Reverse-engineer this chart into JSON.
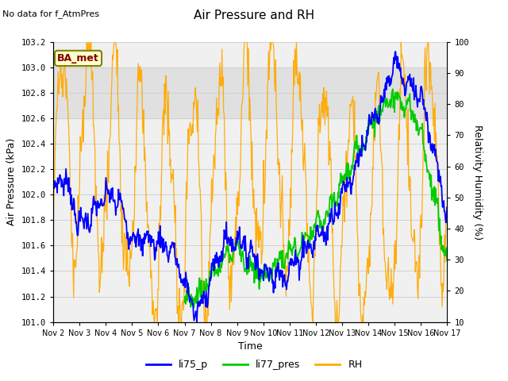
{
  "title": "Air Pressure and RH",
  "no_data_text": "No data for f_AtmPres",
  "station_label": "BA_met",
  "xlabel": "Time",
  "ylabel_left": "Air Pressure (kPa)",
  "ylabel_right": "Relativity Humidity (%)",
  "ylim_left": [
    101.0,
    103.2
  ],
  "ylim_right": [
    10,
    100
  ],
  "yticks_left": [
    101.0,
    101.2,
    101.4,
    101.6,
    101.8,
    102.0,
    102.2,
    102.4,
    102.6,
    102.8,
    103.0,
    103.2
  ],
  "yticks_right": [
    10,
    20,
    30,
    40,
    50,
    60,
    70,
    80,
    90,
    100
  ],
  "xtick_labels": [
    "Nov 2",
    "Nov 3",
    "Nov 4",
    "Nov 5",
    "Nov 6",
    "Nov 7",
    "Nov 8",
    "Nov 9",
    "Nov 10",
    "Nov 11",
    "Nov 12",
    "Nov 13",
    "Nov 14",
    "Nov 15",
    "Nov 16",
    "Nov 17"
  ],
  "color_li75": "#0000ff",
  "color_li77": "#00cc00",
  "color_rh": "#ffaa00",
  "color_station_box_text": "#800000",
  "color_station_border": "#808000",
  "color_station_bg": "#ffffcc",
  "grid_color": "#d0d0d0",
  "plot_bg": "#f0f0f0",
  "shaded_band_color": "#e0e0e0",
  "legend_line_colors": [
    "#0000ff",
    "#00cc00",
    "#ffaa00"
  ],
  "legend_labels": [
    "li75_p",
    "li77_pres",
    "RH"
  ],
  "figsize": [
    6.4,
    4.8
  ],
  "dpi": 100
}
